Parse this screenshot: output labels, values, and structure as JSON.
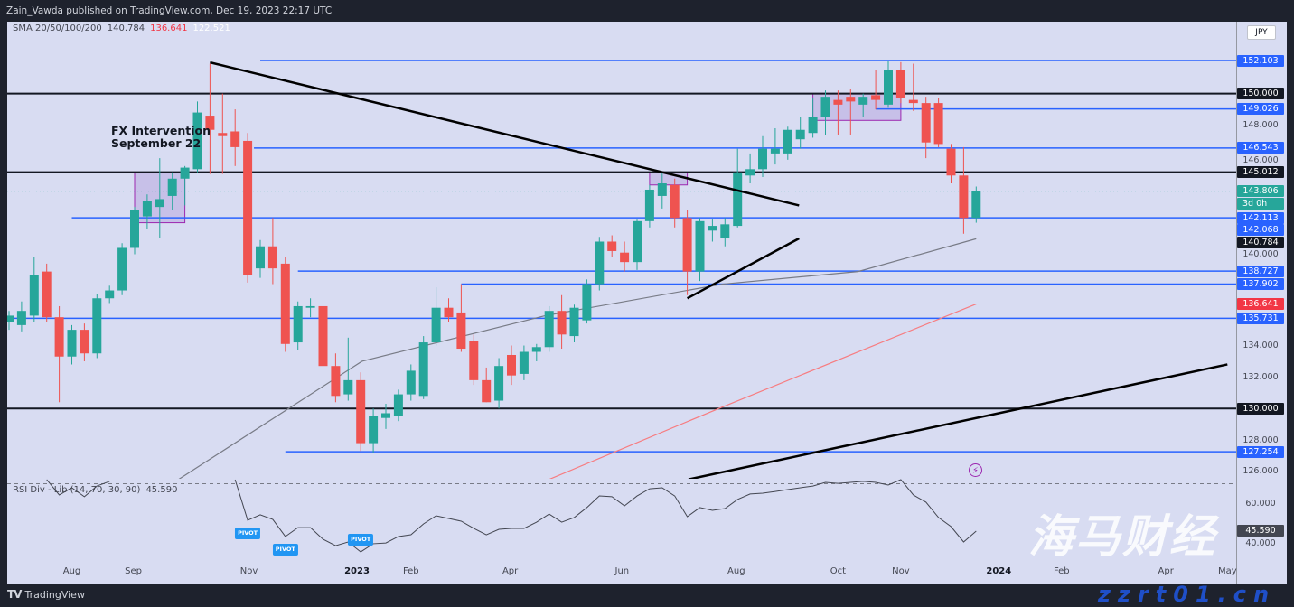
{
  "header": {
    "published": "Zain_Vawda published on TradingView.com, Dec 19, 2023 22:17 UTC"
  },
  "legend": {
    "label": "SMA 20/50/100/200",
    "v1": "140.784",
    "v2": "136.641",
    "v3": "122.521"
  },
  "rsi_legend": {
    "label": "RSI Div - Lib (14, 70, 30, 90)",
    "value": "45.590"
  },
  "currency": "JPY",
  "annotation": "FX Intervention\nSeptember 22",
  "footer": {
    "brand": "TradingView"
  },
  "watermark": {
    "cn": "海马财经",
    "site": "zzrt01.cn"
  },
  "colors": {
    "up": "#26a69a",
    "down": "#ef5350",
    "blue_level": "#2962ff",
    "black_level": "#131722",
    "sma_grey": "#787b86",
    "sma_red": "#f77c80",
    "box": "#b39ddb"
  },
  "chart_data": {
    "type": "candlestick",
    "title": "",
    "ylim": [
      124.8,
      155.2
    ],
    "price_ticks": [
      "148.000",
      "146.000",
      "140.000",
      "134.000",
      "132.000",
      "128.000",
      "126.000"
    ],
    "x_ticks": [
      {
        "label": "Aug",
        "bar": 5
      },
      {
        "label": "Sep",
        "bar": 9.9
      },
      {
        "label": "Nov",
        "bar": 19.1
      },
      {
        "label": "2023",
        "bar": 27.7,
        "year": true
      },
      {
        "label": "Feb",
        "bar": 32
      },
      {
        "label": "Apr",
        "bar": 39.9
      },
      {
        "label": "Jun",
        "bar": 48.8
      },
      {
        "label": "Aug",
        "bar": 57.9
      },
      {
        "label": "Oct",
        "bar": 66
      },
      {
        "label": "Nov",
        "bar": 71
      },
      {
        "label": "2024",
        "bar": 78.8,
        "year": true
      },
      {
        "label": "Feb",
        "bar": 83.8
      },
      {
        "label": "Apr",
        "bar": 92.1
      },
      {
        "label": "May",
        "bar": 97
      }
    ],
    "ohlc": [
      [
        135.5,
        136.2,
        135.0,
        135.9
      ],
      [
        135.3,
        136.8,
        134.9,
        136.2
      ],
      [
        135.9,
        139.6,
        135.5,
        138.5
      ],
      [
        138.7,
        139.2,
        135.5,
        135.8
      ],
      [
        135.8,
        136.5,
        130.4,
        133.3
      ],
      [
        133.3,
        135.3,
        132.8,
        135.0
      ],
      [
        135.0,
        135.4,
        133.0,
        133.5
      ],
      [
        133.5,
        137.3,
        133.2,
        137.0
      ],
      [
        137.0,
        137.8,
        136.7,
        137.5
      ],
      [
        137.5,
        140.5,
        137.2,
        140.2
      ],
      [
        140.2,
        142.8,
        139.8,
        142.6
      ],
      [
        142.2,
        143.6,
        141.4,
        143.2
      ],
      [
        142.8,
        145.9,
        140.8,
        143.3
      ],
      [
        143.5,
        145.0,
        142.6,
        144.6
      ],
      [
        144.6,
        145.4,
        142.9,
        145.3
      ],
      [
        145.2,
        149.5,
        145.0,
        148.8
      ],
      [
        148.6,
        151.9,
        144.9,
        147.7
      ],
      [
        147.5,
        150.0,
        144.9,
        147.3
      ],
      [
        147.6,
        149.0,
        145.4,
        146.6
      ],
      [
        147.0,
        147.5,
        138.0,
        138.5
      ],
      [
        138.9,
        140.7,
        138.3,
        140.3
      ],
      [
        140.3,
        142.1,
        137.9,
        138.9
      ],
      [
        139.2,
        139.6,
        133.6,
        134.1
      ],
      [
        134.2,
        136.8,
        133.7,
        136.5
      ],
      [
        136.4,
        137.0,
        135.8,
        136.5
      ],
      [
        136.5,
        137.3,
        132.0,
        132.7
      ],
      [
        132.7,
        133.5,
        130.4,
        130.8
      ],
      [
        130.9,
        134.5,
        130.5,
        131.8
      ],
      [
        131.8,
        132.3,
        127.3,
        127.8
      ],
      [
        127.8,
        130.0,
        127.2,
        129.5
      ],
      [
        129.4,
        130.3,
        128.7,
        129.7
      ],
      [
        129.5,
        131.2,
        129.2,
        130.9
      ],
      [
        130.9,
        132.8,
        130.5,
        132.4
      ],
      [
        130.8,
        134.6,
        130.6,
        134.2
      ],
      [
        134.2,
        137.7,
        134.0,
        136.4
      ],
      [
        136.4,
        137.0,
        135.5,
        135.8
      ],
      [
        136.1,
        137.9,
        133.6,
        133.8
      ],
      [
        134.3,
        134.7,
        131.5,
        131.8
      ],
      [
        131.8,
        132.6,
        130.4,
        130.4
      ],
      [
        130.5,
        133.2,
        130.0,
        132.7
      ],
      [
        133.4,
        134.0,
        131.5,
        132.1
      ],
      [
        132.2,
        134.0,
        131.8,
        133.6
      ],
      [
        133.6,
        134.1,
        133.0,
        133.9
      ],
      [
        133.9,
        136.5,
        133.6,
        136.2
      ],
      [
        136.2,
        137.2,
        133.8,
        134.7
      ],
      [
        134.6,
        136.6,
        134.2,
        136.4
      ],
      [
        135.6,
        138.2,
        135.4,
        137.9
      ],
      [
        137.9,
        140.9,
        137.5,
        140.6
      ],
      [
        140.6,
        141.0,
        139.6,
        140.0
      ],
      [
        139.9,
        140.6,
        138.7,
        139.3
      ],
      [
        139.3,
        142.0,
        138.8,
        141.9
      ],
      [
        141.9,
        144.2,
        141.5,
        143.9
      ],
      [
        143.5,
        145.0,
        142.7,
        144.3
      ],
      [
        144.2,
        144.6,
        141.5,
        142.1
      ],
      [
        142.1,
        142.6,
        137.2,
        138.7
      ],
      [
        138.7,
        142.1,
        138.1,
        141.9
      ],
      [
        141.3,
        142.0,
        140.6,
        141.6
      ],
      [
        140.8,
        142.1,
        140.3,
        141.7
      ],
      [
        141.6,
        146.5,
        141.5,
        145.0
      ],
      [
        144.8,
        146.2,
        144.3,
        145.2
      ],
      [
        145.2,
        147.3,
        144.7,
        146.5
      ],
      [
        146.2,
        147.8,
        145.5,
        146.5
      ],
      [
        146.2,
        147.9,
        145.8,
        147.7
      ],
      [
        147.1,
        148.5,
        146.5,
        147.7
      ],
      [
        147.5,
        149.7,
        147.2,
        148.5
      ],
      [
        148.5,
        150.2,
        147.4,
        149.8
      ],
      [
        149.6,
        150.2,
        147.4,
        149.3
      ],
      [
        149.8,
        150.3,
        147.4,
        149.5
      ],
      [
        149.3,
        150.0,
        148.5,
        149.8
      ],
      [
        149.9,
        151.5,
        149.0,
        149.6
      ],
      [
        149.3,
        152.1,
        149.1,
        151.5
      ],
      [
        151.5,
        152.0,
        149.4,
        149.7
      ],
      [
        149.6,
        151.9,
        148.9,
        149.4
      ],
      [
        149.4,
        149.8,
        145.9,
        146.9
      ],
      [
        149.4,
        149.7,
        146.6,
        146.8
      ],
      [
        146.5,
        146.8,
        144.3,
        144.8
      ],
      [
        144.8,
        146.6,
        141.1,
        142.1
      ],
      [
        142.1,
        144.1,
        141.8,
        143.8
      ]
    ],
    "horizontal_levels": [
      {
        "price": 152.103,
        "label": "152.103",
        "style": "blue",
        "from_bar": 20
      },
      {
        "price": 150.0,
        "label": "150.000",
        "style": "black",
        "from_bar": -1
      },
      {
        "price": 149.026,
        "label": "149.026",
        "style": "blue",
        "from_bar": 69
      },
      {
        "price": 146.543,
        "label": "146.543",
        "style": "blue",
        "from_bar": 19.5
      },
      {
        "price": 145.012,
        "label": "145.012",
        "style": "black",
        "from_bar": -1
      },
      {
        "price": 142.113,
        "label": "142.113",
        "style": "blue",
        "from_bar": 5
      },
      {
        "price": 138.727,
        "label": "138.727",
        "style": "blue",
        "from_bar": 23
      },
      {
        "price": 137.902,
        "label": "137.902",
        "style": "blue",
        "from_bar": 36
      },
      {
        "price": 135.731,
        "label": "135.731",
        "style": "blue",
        "from_bar": -1
      },
      {
        "price": 130.0,
        "label": "130.000",
        "style": "black",
        "from_bar": -1
      },
      {
        "price": 127.254,
        "label": "127.254",
        "style": "blue",
        "from_bar": 22
      }
    ],
    "extra_price_labels": [
      {
        "price": 143.806,
        "label": "143.806",
        "sub": "3d 0h",
        "color": "#26a69a"
      },
      {
        "price": 142.068,
        "label": "142.068",
        "color": "#2962ff"
      },
      {
        "price": 140.784,
        "label": "140.784",
        "color": "#131722"
      },
      {
        "price": 136.641,
        "label": "136.641",
        "color": "#f23645"
      }
    ],
    "last_price": 143.806,
    "trendlines": [
      {
        "from": [
          16.0,
          151.98
        ],
        "to": [
          62.9,
          142.9
        ]
      },
      {
        "from": [
          54.0,
          137.0
        ],
        "to": [
          62.9,
          140.8
        ]
      },
      {
        "from": [
          54.1,
          125.5
        ],
        "to": [
          97.0,
          132.8
        ]
      }
    ],
    "boxes": [
      {
        "from_bar": 10,
        "to_bar": 14,
        "top": 145.0,
        "bottom": 141.8
      },
      {
        "from_bar": 51,
        "to_bar": 54,
        "top": 145.0,
        "bottom": 144.2
      },
      {
        "from_bar": 64,
        "to_bar": 71,
        "top": 150.0,
        "bottom": 148.3
      }
    ],
    "sma_series": [
      {
        "name": "SMA 20/50/100/200 (1)",
        "color": "#787b86",
        "points": [
          [
            13.5,
            125.5
          ],
          [
            28.1,
            133.0
          ],
          [
            42.7,
            135.9
          ],
          [
            56.8,
            137.9
          ],
          [
            67.6,
            138.7
          ],
          [
            77,
            140.78
          ]
        ]
      },
      {
        "name": "SMA 20/50/100/200 (2)",
        "color": "#f77c80",
        "points": [
          [
            43,
            125.5
          ],
          [
            56.8,
            130.1
          ],
          [
            77,
            136.64
          ]
        ]
      }
    ],
    "rsi": {
      "levels": {
        "upper": 70,
        "ticks": [
          "60.000",
          "40.000"
        ]
      },
      "start_bar": 3,
      "values": [
        72.1,
        64.2,
        67.9,
        63.3,
        68.8,
        71.2,
        null,
        null,
        null,
        null,
        null,
        null,
        null,
        null,
        null,
        72.1,
        51.2,
        54.0,
        51.6,
        42.8,
        47.4,
        47.4,
        41.4,
        38.1,
        40.0,
        34.9,
        39.1,
        39.5,
        42.8,
        43.7,
        49.3,
        53.5,
        52.1,
        50.7,
        47.0,
        43.7,
        46.5,
        47.0,
        47.0,
        50.2,
        54.4,
        50.2,
        52.6,
        57.7,
        63.7,
        63.3,
        58.6,
        63.7,
        67.4,
        67.9,
        63.7,
        53.0,
        57.7,
        56.3,
        57.2,
        61.9,
        64.7,
        65.1,
        66.0,
        67.0,
        67.9,
        68.8,
        70.7,
        70.2,
        70.7,
        71.2,
        70.7,
        69.3,
        72.1,
        64.2,
        60.5,
        52.6,
        47.9,
        40.0,
        45.6
      ],
      "pivots": [
        {
          "bar": 19,
          "label": "PIVOT"
        },
        {
          "bar": 22,
          "label": "PIVOT"
        },
        {
          "bar": 28,
          "label": "PIVOT"
        }
      ]
    }
  }
}
